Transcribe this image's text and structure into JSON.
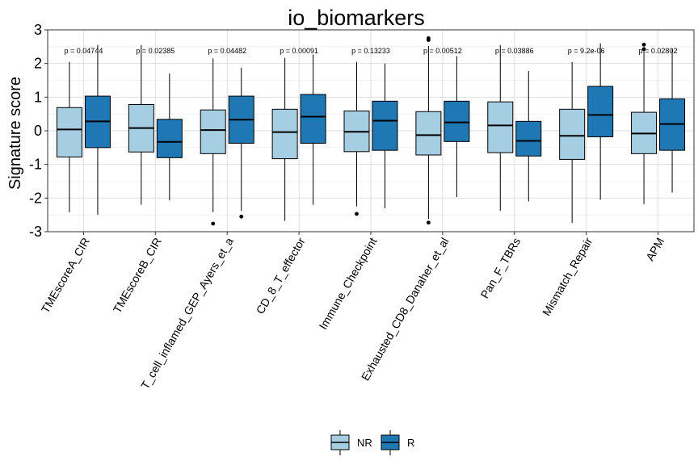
{
  "chart_data": {
    "type": "boxplot",
    "title": "io_biomarkers",
    "xlabel": "",
    "ylabel": "Signature score",
    "ylim": [
      -3,
      3
    ],
    "yticks": [
      -3,
      -2,
      -1,
      0,
      1,
      2,
      3
    ],
    "grid": true,
    "legend_position": "bottom",
    "categories": [
      "TMEscoreA_CIR",
      "TMEscoreB_CIR",
      "T_cell_inflamed_GEP_Ayers_et_a",
      "CD_8_T_effector",
      "Immune_Checkpoint",
      "Exhausted_CD8_Danaher_et_al",
      "Pan_F_TBRs",
      "Mismatch_Repair",
      "APM"
    ],
    "p_values": [
      "p = 0.04744",
      "p = 0.02385",
      "p = 0.04482",
      "p = 0.00091",
      "p = 0.13233",
      "p = 0.00512",
      "p = 0.03886",
      "p = 9.2e-06",
      "p = 0.02802"
    ],
    "series": [
      {
        "name": "NR",
        "color": "#a6cee3",
        "boxes": [
          {
            "min": -2.42,
            "q1": -0.78,
            "median": 0.04,
            "q3": 0.69,
            "max": 2.05,
            "outliers": []
          },
          {
            "min": -2.2,
            "q1": -0.63,
            "median": 0.08,
            "q3": 0.78,
            "max": 2.55,
            "outliers": []
          },
          {
            "min": -2.42,
            "q1": -0.68,
            "median": 0.02,
            "q3": 0.62,
            "max": 2.15,
            "outliers": [
              -2.76
            ]
          },
          {
            "min": -2.68,
            "q1": -0.83,
            "median": -0.04,
            "q3": 0.64,
            "max": 2.17,
            "outliers": []
          },
          {
            "min": -2.25,
            "q1": -0.62,
            "median": -0.03,
            "q3": 0.59,
            "max": 2.05,
            "outliers": [
              -2.47
            ]
          },
          {
            "min": -2.62,
            "q1": -0.72,
            "median": -0.13,
            "q3": 0.57,
            "max": 2.52,
            "outliers": [
              -2.73,
              2.7,
              2.75
            ]
          },
          {
            "min": -2.38,
            "q1": -0.65,
            "median": 0.16,
            "q3": 0.86,
            "max": 2.55,
            "outliers": []
          },
          {
            "min": -2.74,
            "q1": -0.85,
            "median": -0.15,
            "q3": 0.64,
            "max": 2.04,
            "outliers": []
          },
          {
            "min": -2.18,
            "q1": -0.68,
            "median": -0.08,
            "q3": 0.55,
            "max": 2.4,
            "outliers": [
              2.43,
              2.56
            ]
          }
        ]
      },
      {
        "name": "R",
        "color": "#1f78b4",
        "boxes": [
          {
            "min": -2.5,
            "q1": -0.5,
            "median": 0.28,
            "q3": 1.03,
            "max": 2.55,
            "outliers": []
          },
          {
            "min": -2.07,
            "q1": -0.8,
            "median": -0.33,
            "q3": 0.34,
            "max": 1.7,
            "outliers": []
          },
          {
            "min": -2.38,
            "q1": -0.37,
            "median": 0.33,
            "q3": 1.03,
            "max": 1.88,
            "outliers": [
              -2.55
            ]
          },
          {
            "min": -2.2,
            "q1": -0.37,
            "median": 0.42,
            "q3": 1.08,
            "max": 2.27,
            "outliers": []
          },
          {
            "min": -2.3,
            "q1": -0.58,
            "median": 0.3,
            "q3": 0.88,
            "max": 2.0,
            "outliers": []
          },
          {
            "min": -1.97,
            "q1": -0.32,
            "median": 0.25,
            "q3": 0.88,
            "max": 2.22,
            "outliers": []
          },
          {
            "min": -2.1,
            "q1": -0.75,
            "median": -0.3,
            "q3": 0.28,
            "max": 1.78,
            "outliers": []
          },
          {
            "min": -2.05,
            "q1": -0.18,
            "median": 0.47,
            "q3": 1.32,
            "max": 2.6,
            "outliers": []
          },
          {
            "min": -1.84,
            "q1": -0.58,
            "median": 0.2,
            "q3": 0.95,
            "max": 2.45,
            "outliers": []
          }
        ]
      }
    ]
  }
}
